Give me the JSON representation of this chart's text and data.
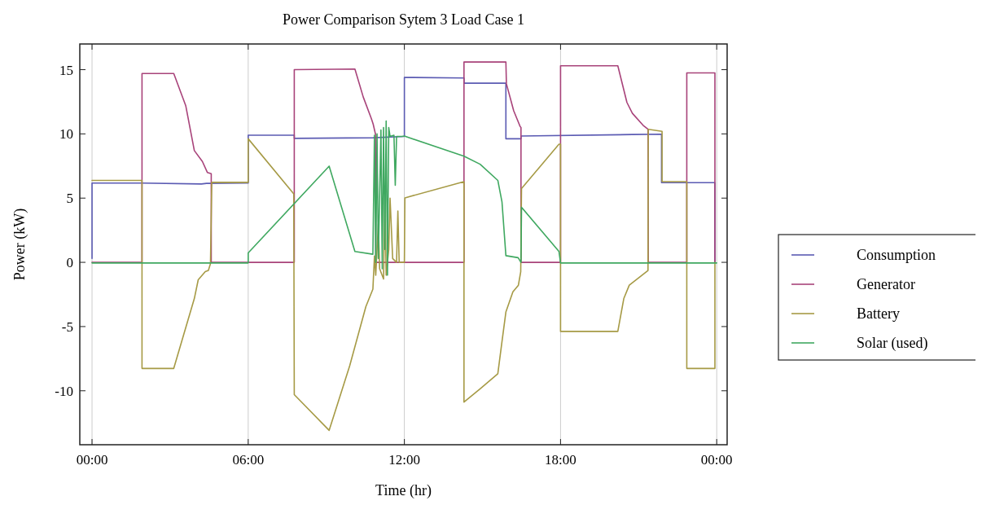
{
  "chart_data": {
    "type": "line",
    "title": "Power Comparison Sytem 3 Load Case 1",
    "xlabel": "Time (hr)",
    "ylabel": "Power (kW)",
    "xlim": [
      -0.47,
      24.4
    ],
    "ylim": [
      -14.2,
      17
    ],
    "xticks": [
      {
        "value": 0,
        "label": "00:00"
      },
      {
        "value": 6,
        "label": "06:00"
      },
      {
        "value": 12,
        "label": "12:00"
      },
      {
        "value": 18,
        "label": "18:00"
      },
      {
        "value": 24,
        "label": "00:00"
      }
    ],
    "yticks": [
      -10,
      -5,
      0,
      5,
      10,
      15
    ],
    "grid": "x",
    "legend": "right",
    "line_style": "solid",
    "marker": "none",
    "series": [
      {
        "name": "Consumption",
        "color": "#5b5bb3",
        "x": [
          0,
          0,
          1.9,
          4.2,
          4.4,
          6,
          6,
          7.77,
          7.77,
          10.8,
          12,
          12,
          14.29,
          14.29,
          15.9,
          15.9,
          16.48,
          16.48,
          20.76,
          21.88,
          21.88,
          23.93,
          23.93
        ],
        "values": [
          0.3,
          6.17,
          6.17,
          6.1,
          6.15,
          6.17,
          9.9,
          9.9,
          9.65,
          9.7,
          9.8,
          14.4,
          14.35,
          13.95,
          13.95,
          9.62,
          9.62,
          9.83,
          9.95,
          9.98,
          6.2,
          6.2,
          0
        ]
      },
      {
        "name": "Generator",
        "color": "#a8437a",
        "x": [
          0,
          1.92,
          1.92,
          3.14,
          3.6,
          3.93,
          4.24,
          4.43,
          4.58,
          4.58,
          7.77,
          7.77,
          10.1,
          10.42,
          10.73,
          10.8,
          10.9,
          10.9,
          14.29,
          14.29,
          15.9,
          15.92,
          16.2,
          16.45,
          16.48,
          16.48,
          18,
          18,
          20.2,
          20.55,
          20.76,
          21.17,
          21.36,
          21.37,
          22.85,
          22.85,
          23.93,
          23.93
        ],
        "values": [
          0,
          0,
          14.7,
          14.7,
          12.2,
          8.7,
          7.85,
          7.0,
          6.9,
          0,
          0,
          15.0,
          15.05,
          12.87,
          11.2,
          10.77,
          9.9,
          0,
          0,
          15.6,
          15.6,
          13.9,
          11.8,
          10.56,
          10.5,
          0,
          0,
          15.3,
          15.3,
          12.45,
          11.6,
          10.67,
          10.36,
          0,
          0,
          14.75,
          14.75,
          0
        ]
      },
      {
        "name": "Battery",
        "color": "#a69a45",
        "x": [
          0,
          1.92,
          1.92,
          3.14,
          3.93,
          4.08,
          4.35,
          4.47,
          4.55,
          4.6,
          6,
          6,
          7.75,
          7.77,
          9.11,
          9.9,
          10.52,
          10.79,
          10.85,
          10.9,
          11.0,
          11.05,
          11.2,
          11.25,
          11.3,
          11.4,
          11.45,
          11.55,
          11.7,
          11.75,
          11.8,
          12,
          12.02,
          14.29,
          14.29,
          14.92,
          15.59,
          15.75,
          15.9,
          16.17,
          16.38,
          16.47,
          16.5,
          17.94,
          18,
          18,
          20.2,
          20.43,
          20.64,
          21.17,
          21.36,
          21.37,
          21.9,
          21.9,
          22.85,
          22.85,
          23.93,
          23.93
        ],
        "values": [
          6.38,
          6.38,
          -8.26,
          -8.26,
          -2.82,
          -1.36,
          -0.73,
          -0.63,
          -0.1,
          6.23,
          6.23,
          9.62,
          5.33,
          -10.3,
          -13.08,
          -8.05,
          -3.45,
          -2.09,
          0.5,
          -1,
          3,
          -0.5,
          -1.3,
          5,
          -1,
          1,
          5,
          0.3,
          0,
          4,
          0,
          0,
          5.02,
          6.28,
          -10.88,
          -9.83,
          -8.68,
          -6.17,
          -3.87,
          -2.3,
          -1.78,
          -0.73,
          5.75,
          9.2,
          9.2,
          -5.38,
          -5.38,
          -2.82,
          -1.78,
          -0.94,
          -0.63,
          10.36,
          10.2,
          6.28,
          6.28,
          -8.26,
          -8.26,
          0
        ]
      },
      {
        "name": "Solar (used)",
        "color": "#3fa860",
        "x": [
          0,
          6,
          6,
          9.11,
          10.1,
          10.79,
          10.85,
          10.9,
          10.95,
          11.0,
          11.1,
          11.15,
          11.2,
          11.25,
          11.3,
          11.35,
          11.4,
          11.45,
          11.6,
          11.65,
          11.7,
          11.9,
          12,
          14.29,
          14.91,
          15.59,
          15.75,
          15.9,
          16.37,
          16.48,
          16.5,
          17.94,
          18,
          24
        ],
        "values": [
          -0.05,
          -0.05,
          0.73,
          7.49,
          0.84,
          0.63,
          9.9,
          0,
          10,
          0.3,
          10.3,
          -0.5,
          10.5,
          1,
          11,
          -1,
          10.5,
          9.8,
          9.9,
          6,
          9.8,
          9.8,
          9.83,
          8.26,
          7.64,
          6.38,
          4.7,
          0.52,
          0.36,
          0,
          4.29,
          0.84,
          -0.05,
          -0.05
        ]
      }
    ]
  }
}
